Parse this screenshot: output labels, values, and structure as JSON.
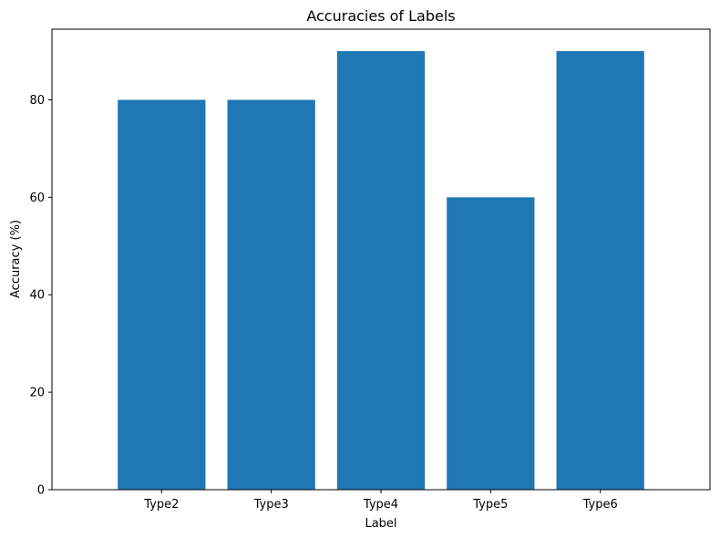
{
  "chart_data": {
    "type": "bar",
    "title": "Accuracies of Labels",
    "xlabel": "Label",
    "ylabel": "Accuracy (%)",
    "categories": [
      "Type2",
      "Type3",
      "Type4",
      "Type5",
      "Type6"
    ],
    "values": [
      80,
      80,
      90,
      60,
      90
    ],
    "ylim": [
      0,
      94.5
    ],
    "yticks": [
      0,
      20,
      40,
      60,
      80
    ],
    "grid": false,
    "bar_color": "#1f77b4"
  }
}
